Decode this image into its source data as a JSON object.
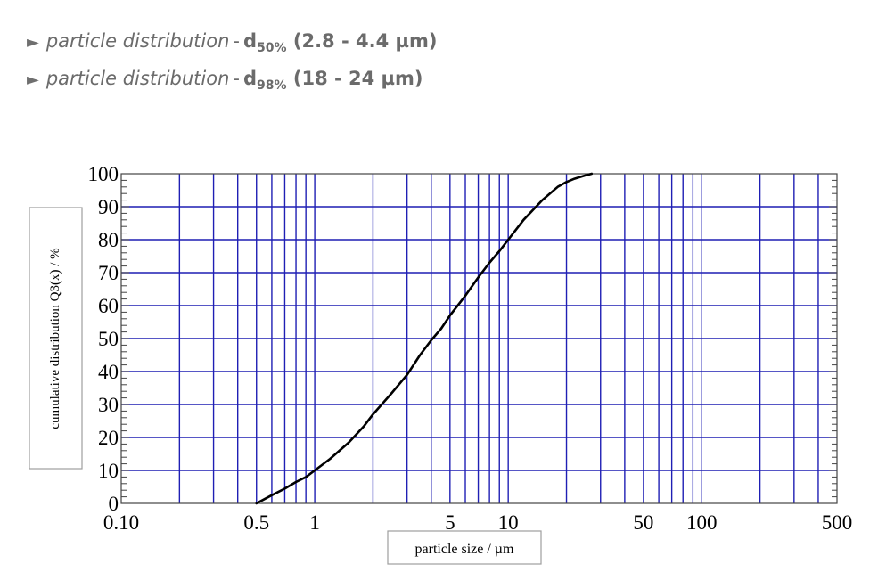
{
  "spec_lines": [
    {
      "arrow": "►",
      "name": "particle distribution",
      "sep": "-",
      "symbol": "d",
      "subscript": "50%",
      "range": " (2.8 - 4.4 µm)"
    },
    {
      "arrow": "►",
      "name": "particle distribution",
      "sep": "-",
      "symbol": "d",
      "subscript": "98%",
      "range": " (18 - 24 µm)"
    }
  ],
  "chart_data": {
    "type": "line",
    "title": "",
    "xlabel": "particle size / µm",
    "ylabel": "cumulative distribution Q3(x) / %",
    "x_scale": "log",
    "xlim": [
      0.1,
      500
    ],
    "ylim": [
      0,
      100
    ],
    "x_tick_labels": [
      {
        "value": 0.1,
        "label": "0.10"
      },
      {
        "value": 0.5,
        "label": "0.5"
      },
      {
        "value": 1,
        "label": "1"
      },
      {
        "value": 5,
        "label": "5"
      },
      {
        "value": 10,
        "label": "10"
      },
      {
        "value": 50,
        "label": "50"
      },
      {
        "value": 100,
        "label": "100"
      },
      {
        "value": 500,
        "label": "500"
      }
    ],
    "y_ticks": [
      0,
      10,
      20,
      30,
      40,
      50,
      60,
      70,
      80,
      90,
      100
    ],
    "grid": true,
    "grid_color": "#1f1fb4",
    "line_color": "#000000",
    "legend": "none",
    "series": [
      {
        "x": [
          0.5,
          0.6,
          0.7,
          0.8,
          0.9,
          1.0,
          1.2,
          1.5,
          1.8,
          2.0,
          2.5,
          3.0,
          3.5,
          4.0,
          4.5,
          5.0,
          6.0,
          7.0,
          8.0,
          9.0,
          10,
          12,
          15,
          18,
          20,
          22,
          25,
          27
        ],
        "y": [
          0,
          2.5,
          4.5,
          6.5,
          8,
          10,
          13.5,
          18.5,
          23.5,
          27,
          33.5,
          39,
          45,
          49.5,
          53,
          57,
          63,
          68.5,
          73,
          76.5,
          80,
          86,
          92,
          96,
          97.5,
          98.5,
          99.5,
          100
        ]
      }
    ]
  }
}
